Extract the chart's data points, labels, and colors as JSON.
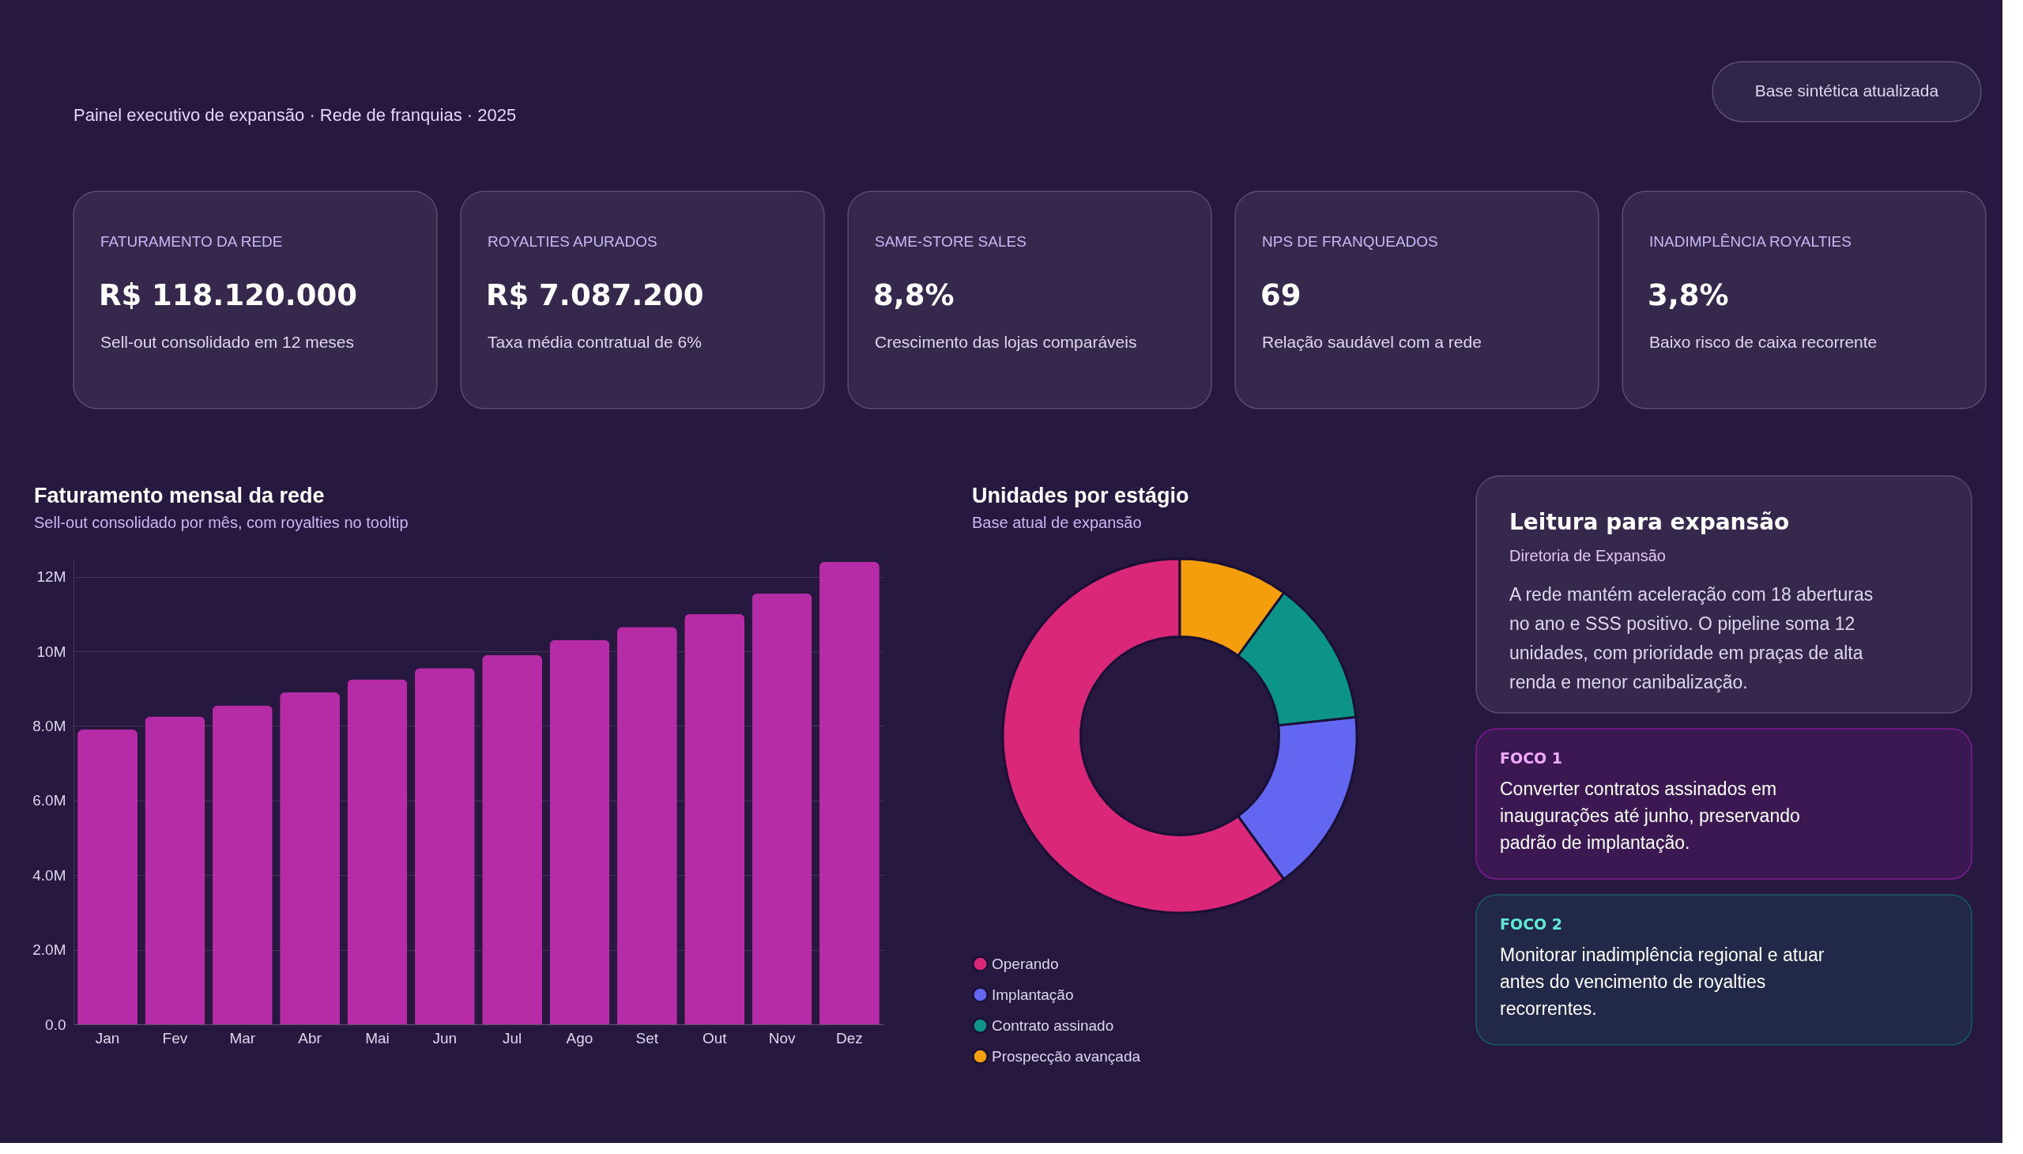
{
  "chart_data": [
    {
      "type": "other",
      "subtitle": "Painel executivo de expansão · Rede de franquias · 2025",
      "annotations": [
        "Base sintética atualizada"
      ]
    },
    {
      "type": "other",
      "title": "FATURAMENTO DA REDE",
      "annotations": [
        "R$ 118.120.000",
        "Sell-out consolidado em 12 meses"
      ]
    },
    {
      "type": "other",
      "title": "ROYALTIES APURADOS",
      "annotations": [
        "R$ 7.087.200",
        "Taxa média contratual de 6%"
      ]
    },
    {
      "type": "other",
      "title": "SAME-STORE SALES",
      "annotations": [
        "8,8%",
        "Crescimento das lojas comparáveis"
      ]
    },
    {
      "type": "other",
      "title": "NPS DE FRANQUEADOS",
      "annotations": [
        "69",
        "Relação saudável com a rede"
      ]
    },
    {
      "type": "other",
      "title": "INADIMPLÊNCIA ROYALTIES",
      "annotations": [
        "3,8%",
        "Baixo risco de caixa recorrente"
      ]
    },
    {
      "type": "bar",
      "title": "Faturamento mensal da rede",
      "subtitle": "Sell-out consolidado por mês, com royalties no tooltip",
      "categories": [
        "Jan",
        "Fev",
        "Mar",
        "Abr",
        "Mai",
        "Jun",
        "Jul",
        "Ago",
        "Set",
        "Out",
        "Nov",
        "Dez"
      ],
      "values": [
        7900000,
        8250000,
        8550000,
        8900000,
        9250000,
        9550000,
        9900000,
        10300000,
        10650000,
        11000000,
        11550000,
        12400000
      ],
      "color": "#b52ca6",
      "ylim": [
        0,
        12500000
      ],
      "yticks": [
        {
          "value": 0,
          "label": "0.0"
        },
        {
          "value": 2000000,
          "label": "2.0M"
        },
        {
          "value": 4000000,
          "label": "4.0M"
        },
        {
          "value": 6000000,
          "label": "6.0M"
        },
        {
          "value": 8000000,
          "label": "8.0M"
        },
        {
          "value": 10000000,
          "label": "10M"
        },
        {
          "value": 12000000,
          "label": "12M"
        }
      ],
      "grid": "y"
    },
    {
      "type": "donut",
      "title": "Unidades por estágio",
      "subtitle": "Base atual de expansão",
      "categories": [
        "Operando",
        "Implantação",
        "Contrato assinado",
        "Prospecção avançada"
      ],
      "values": [
        60,
        16.7,
        13.3,
        10
      ],
      "colors": [
        "#db2777",
        "#6366f1",
        "#0d9488",
        "#f59e0b"
      ],
      "legend": "bottom"
    },
    {
      "type": "other",
      "title": "Leitura para expansão",
      "subtitle": "Diretoria de Expansão",
      "annotations": [
        "A rede mantém aceleração com 18 aberturas no ano e SSS positivo. O pipeline soma 12 unidades, com prioridade em praças de alta renda e menor canibalização.",
        "FOCO 1",
        "Converter contratos assinados em inaugurações até junho, preservando padrão de implantação.",
        "FOCO 2",
        "Monitorar inadimplência regional e atuar antes do vencimento de royalties recorrentes."
      ]
    }
  ]
}
